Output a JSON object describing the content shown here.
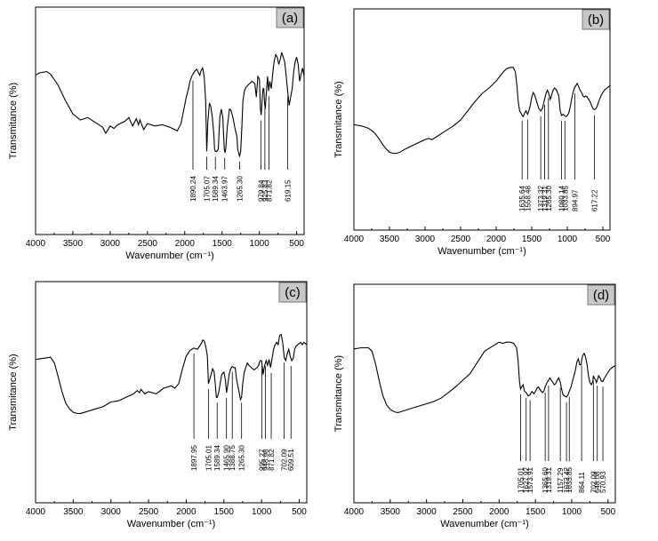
{
  "chart_data": [
    {
      "type": "line",
      "panel_label": "(a)",
      "xlabel": "Wavenumber (cm⁻¹)",
      "ylabel": "Transmitance (%)",
      "xlim": [
        4000,
        400
      ],
      "xticks": [
        4000,
        3500,
        3000,
        2500,
        2000,
        1500,
        1000,
        500
      ],
      "peaks": [
        "1890.24",
        "1705.07",
        "1589.34",
        "1463.97",
        "1265.30",
        "979.84",
        "925.83",
        "871.82",
        "619.15"
      ],
      "series": [
        {
          "x": [
            4000,
            3950,
            3850,
            3800,
            3700,
            3600,
            3500,
            3400,
            3300,
            3200,
            3100,
            3060,
            3000,
            2950,
            2900,
            2800,
            2750,
            2700,
            2650,
            2620,
            2600,
            2550,
            2500,
            2400,
            2300,
            2200,
            2100,
            2050,
            1980,
            1950,
            1930,
            1900,
            1870,
            1840,
            1800,
            1780,
            1760,
            1740,
            1720,
            1705,
            1690,
            1670,
            1650,
            1630,
            1610,
            1600,
            1590,
            1570,
            1550,
            1530,
            1510,
            1490,
            1480,
            1470,
            1460,
            1450,
            1430,
            1400,
            1380,
            1350,
            1330,
            1300,
            1290,
            1275,
            1265,
            1250,
            1235,
            1220,
            1200,
            1180,
            1150,
            1100,
            1060,
            1040,
            1020,
            1000,
            985,
            975,
            960,
            950,
            940,
            930,
            920,
            910,
            890,
            875,
            860,
            840,
            820,
            800,
            780,
            760,
            740,
            720,
            700,
            680,
            660,
            640,
            620,
            600,
            580,
            560,
            540,
            520,
            500,
            480,
            460,
            440,
            420,
            400
          ],
          "y": [
            0.73,
            0.75,
            0.76,
            0.74,
            0.65,
            0.52,
            0.41,
            0.36,
            0.38,
            0.34,
            0.3,
            0.25,
            0.31,
            0.29,
            0.32,
            0.35,
            0.38,
            0.31,
            0.37,
            0.32,
            0.36,
            0.28,
            0.33,
            0.31,
            0.32,
            0.3,
            0.27,
            0.33,
            0.55,
            0.62,
            0.68,
            0.73,
            0.76,
            0.78,
            0.73,
            0.77,
            0.79,
            0.72,
            0.52,
            0.1,
            0.35,
            0.5,
            0.47,
            0.38,
            0.24,
            0.12,
            0.1,
            0.1,
            0.12,
            0.38,
            0.45,
            0.38,
            0.25,
            0.12,
            0.09,
            0.12,
            0.3,
            0.45,
            0.44,
            0.37,
            0.3,
            0.22,
            0.12,
            0.08,
            0.06,
            0.1,
            0.3,
            0.52,
            0.6,
            0.63,
            0.65,
            0.68,
            0.66,
            0.55,
            0.72,
            0.7,
            0.45,
            0.4,
            0.55,
            0.62,
            0.62,
            0.5,
            0.45,
            0.55,
            0.72,
            0.6,
            0.68,
            0.62,
            0.75,
            0.85,
            0.9,
            0.88,
            0.82,
            0.86,
            0.92,
            0.88,
            0.84,
            0.72,
            0.6,
            0.48,
            0.55,
            0.62,
            0.76,
            0.84,
            0.88,
            0.82,
            0.68,
            0.74,
            0.79,
            0.72
          ]
        }
      ]
    },
    {
      "type": "line",
      "panel_label": "(b)",
      "xlabel": "Wavenumber (cm⁻¹)",
      "ylabel": "Transmitance (%)",
      "xlim": [
        4000,
        400
      ],
      "xticks": [
        4000,
        3500,
        3000,
        2500,
        2000,
        1500,
        1000,
        500
      ],
      "peaks": [
        "1635.64",
        "1558.48",
        "1373.32",
        "1319.31",
        "1265.30",
        "1080.14",
        "1033.85",
        "894.97",
        "617.22"
      ],
      "series": [
        {
          "x": [
            4000,
            3900,
            3800,
            3750,
            3700,
            3650,
            3600,
            3550,
            3500,
            3450,
            3400,
            3350,
            3300,
            3200,
            3100,
            3000,
            2950,
            2900,
            2850,
            2800,
            2700,
            2600,
            2500,
            2400,
            2300,
            2200,
            2100,
            2000,
            1950,
            1900,
            1850,
            1800,
            1760,
            1730,
            1710,
            1690,
            1670,
            1650,
            1635,
            1620,
            1600,
            1580,
            1558,
            1540,
            1520,
            1500,
            1480,
            1460,
            1440,
            1420,
            1400,
            1373,
            1350,
            1320,
            1300,
            1280,
            1265,
            1240,
            1220,
            1200,
            1180,
            1150,
            1120,
            1100,
            1080,
            1060,
            1040,
            1020,
            1000,
            980,
            960,
            940,
            920,
            900,
            880,
            860,
            840,
            820,
            800,
            780,
            760,
            740,
            720,
            700,
            680,
            660,
            640,
            620,
            600,
            580,
            560,
            540,
            520,
            500,
            480,
            460,
            440,
            420,
            400
          ],
          "y": [
            0.3,
            0.29,
            0.27,
            0.25,
            0.22,
            0.18,
            0.13,
            0.09,
            0.06,
            0.05,
            0.05,
            0.06,
            0.08,
            0.11,
            0.14,
            0.17,
            0.18,
            0.17,
            0.19,
            0.21,
            0.25,
            0.29,
            0.34,
            0.42,
            0.5,
            0.57,
            0.62,
            0.68,
            0.72,
            0.76,
            0.79,
            0.8,
            0.8,
            0.76,
            0.65,
            0.5,
            0.42,
            0.4,
            0.38,
            0.37,
            0.4,
            0.42,
            0.39,
            0.42,
            0.47,
            0.54,
            0.58,
            0.56,
            0.52,
            0.48,
            0.44,
            0.42,
            0.44,
            0.52,
            0.57,
            0.6,
            0.58,
            0.52,
            0.56,
            0.6,
            0.62,
            0.6,
            0.55,
            0.42,
            0.38,
            0.39,
            0.38,
            0.37,
            0.38,
            0.4,
            0.45,
            0.52,
            0.58,
            0.62,
            0.64,
            0.66,
            0.63,
            0.6,
            0.58,
            0.55,
            0.54,
            0.55,
            0.54,
            0.52,
            0.5,
            0.47,
            0.44,
            0.43,
            0.44,
            0.46,
            0.5,
            0.53,
            0.56,
            0.58,
            0.6,
            0.61,
            0.62,
            0.63,
            0.64
          ]
        }
      ]
    },
    {
      "type": "line",
      "panel_label": "(c)",
      "xlabel": "Wavenumber (cm⁻¹)",
      "ylabel": "Transmitance (%)",
      "xlim": [
        4000,
        400
      ],
      "xticks": [
        4000,
        3500,
        3000,
        2500,
        2000,
        1500,
        1000,
        500
      ],
      "peaks": [
        "1897.95",
        "1705.01",
        "1589.34",
        "1465.90",
        "1388.75",
        "1265.30",
        "995.27",
        "948.98",
        "871.82",
        "702.09",
        "609.51"
      ],
      "series": [
        {
          "x": [
            4000,
            3900,
            3800,
            3750,
            3700,
            3650,
            3600,
            3550,
            3500,
            3450,
            3400,
            3300,
            3200,
            3100,
            3000,
            2900,
            2800,
            2700,
            2650,
            2620,
            2600,
            2550,
            2500,
            2400,
            2300,
            2200,
            2150,
            2100,
            2050,
            2000,
            1950,
            1900,
            1850,
            1800,
            1780,
            1760,
            1740,
            1720,
            1705,
            1690,
            1670,
            1650,
            1630,
            1610,
            1600,
            1589,
            1570,
            1550,
            1530,
            1500,
            1480,
            1465,
            1450,
            1430,
            1410,
            1390,
            1370,
            1350,
            1330,
            1300,
            1280,
            1265,
            1250,
            1230,
            1210,
            1190,
            1170,
            1150,
            1120,
            1100,
            1080,
            1060,
            1040,
            1020,
            1000,
            980,
            960,
            940,
            920,
            900,
            880,
            860,
            840,
            820,
            800,
            780,
            760,
            740,
            720,
            700,
            680,
            660,
            640,
            620,
            600,
            580,
            560,
            540,
            520,
            500,
            480,
            460,
            440,
            420,
            400
          ],
          "y": [
            0.63,
            0.64,
            0.65,
            0.6,
            0.48,
            0.35,
            0.25,
            0.2,
            0.17,
            0.16,
            0.16,
            0.18,
            0.2,
            0.22,
            0.26,
            0.27,
            0.3,
            0.33,
            0.36,
            0.34,
            0.37,
            0.33,
            0.35,
            0.33,
            0.38,
            0.4,
            0.38,
            0.42,
            0.55,
            0.66,
            0.71,
            0.73,
            0.72,
            0.77,
            0.8,
            0.79,
            0.74,
            0.66,
            0.42,
            0.45,
            0.5,
            0.55,
            0.52,
            0.38,
            0.3,
            0.3,
            0.34,
            0.42,
            0.5,
            0.52,
            0.45,
            0.34,
            0.4,
            0.5,
            0.55,
            0.57,
            0.56,
            0.56,
            0.45,
            0.35,
            0.28,
            0.3,
            0.42,
            0.52,
            0.56,
            0.6,
            0.58,
            0.57,
            0.55,
            0.54,
            0.55,
            0.56,
            0.58,
            0.62,
            0.62,
            0.5,
            0.58,
            0.62,
            0.58,
            0.63,
            0.56,
            0.64,
            0.72,
            0.76,
            0.78,
            0.76,
            0.84,
            0.85,
            0.78,
            0.65,
            0.62,
            0.68,
            0.72,
            0.66,
            0.62,
            0.64,
            0.72,
            0.75,
            0.76,
            0.77,
            0.78,
            0.76,
            0.78,
            0.77,
            0.76
          ]
        }
      ]
    },
    {
      "type": "line",
      "panel_label": "(d)",
      "xlabel": "Wavenumber (cm⁻¹)",
      "ylabel": "Transmitance (%)",
      "xlim": [
        4000,
        400
      ],
      "xticks": [
        4000,
        3500,
        3000,
        2500,
        2000,
        1500,
        1000,
        500
      ],
      "peaks": [
        "1705.01",
        "1627.92",
        "1573.91",
        "1365.60",
        "1319.31",
        "1157.29",
        "1072.42",
        "1033.85",
        "864.11",
        "702.09",
        "648.08",
        "570.93"
      ],
      "series": [
        {
          "x": [
            4000,
            3900,
            3800,
            3750,
            3700,
            3650,
            3600,
            3550,
            3500,
            3450,
            3400,
            3300,
            3200,
            3100,
            3000,
            2900,
            2800,
            2700,
            2600,
            2500,
            2400,
            2300,
            2200,
            2100,
            2050,
            2000,
            1950,
            1900,
            1850,
            1800,
            1760,
            1740,
            1720,
            1705,
            1690,
            1670,
            1650,
            1628,
            1600,
            1574,
            1550,
            1520,
            1500,
            1480,
            1460,
            1440,
            1420,
            1400,
            1380,
            1366,
            1340,
            1319,
            1300,
            1280,
            1260,
            1240,
            1220,
            1200,
            1180,
            1157,
            1140,
            1120,
            1100,
            1072,
            1050,
            1034,
            1010,
            990,
            970,
            950,
            930,
            910,
            890,
            870,
            864,
            850,
            830,
            810,
            790,
            770,
            750,
            730,
            710,
            702,
            690,
            670,
            660,
            648,
            630,
            610,
            590,
            571,
            550,
            530,
            510,
            490,
            470,
            450,
            430,
            400
          ],
          "y": [
            0.74,
            0.75,
            0.75,
            0.72,
            0.6,
            0.45,
            0.32,
            0.24,
            0.2,
            0.18,
            0.17,
            0.19,
            0.21,
            0.23,
            0.25,
            0.27,
            0.3,
            0.35,
            0.4,
            0.46,
            0.52,
            0.62,
            0.72,
            0.76,
            0.78,
            0.8,
            0.79,
            0.8,
            0.8,
            0.79,
            0.75,
            0.64,
            0.45,
            0.38,
            0.4,
            0.42,
            0.36,
            0.35,
            0.32,
            0.33,
            0.36,
            0.34,
            0.36,
            0.39,
            0.4,
            0.38,
            0.36,
            0.35,
            0.37,
            0.4,
            0.44,
            0.46,
            0.48,
            0.46,
            0.44,
            0.42,
            0.43,
            0.46,
            0.48,
            0.44,
            0.38,
            0.33,
            0.32,
            0.31,
            0.33,
            0.36,
            0.4,
            0.45,
            0.5,
            0.55,
            0.62,
            0.65,
            0.6,
            0.6,
            0.64,
            0.68,
            0.7,
            0.67,
            0.6,
            0.5,
            0.44,
            0.42,
            0.45,
            0.5,
            0.48,
            0.46,
            0.44,
            0.46,
            0.5,
            0.48,
            0.45,
            0.45,
            0.48,
            0.5,
            0.52,
            0.54,
            0.56,
            0.57,
            0.58,
            0.59
          ]
        }
      ]
    }
  ]
}
